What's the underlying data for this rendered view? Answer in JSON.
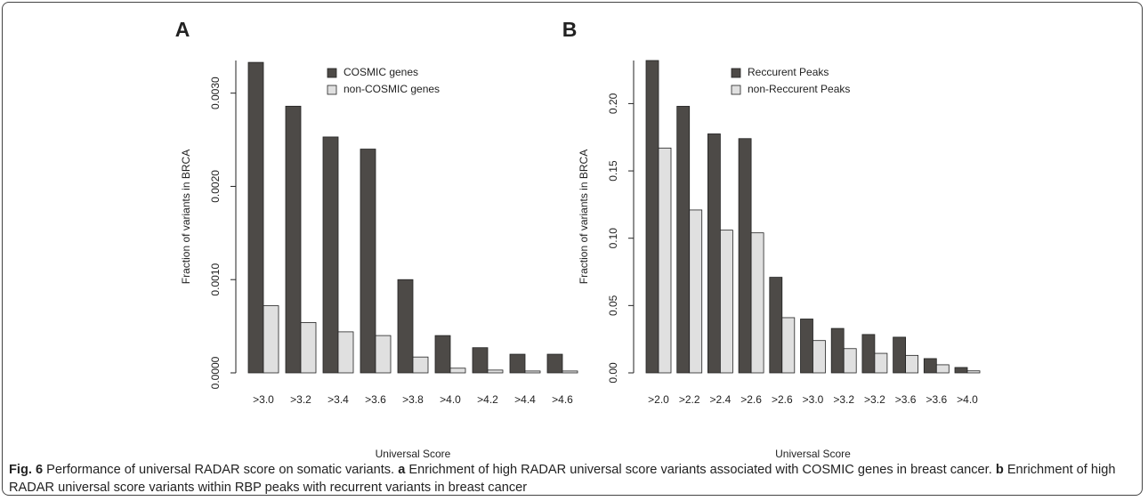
{
  "chart_data": [
    {
      "type": "bar",
      "panel": "A",
      "x_label": "Universal Score",
      "y_label": "Fraction of variants in BRCA",
      "categories": [
        ">3.0",
        ">3.2",
        ">3.4",
        ">3.6",
        ">3.8",
        ">4.0",
        ">4.2",
        ">4.4",
        ">4.6"
      ],
      "series": [
        {
          "name": "COSMIC genes",
          "color": "#4d4a47",
          "values": [
            0.00333,
            0.00286,
            0.00253,
            0.0024,
            0.001,
            0.0004,
            0.00027,
            0.0002,
            0.0002
          ]
        },
        {
          "name": "non-COSMIC genes",
          "color": "#e0e0e0",
          "values": [
            0.00072,
            0.00054,
            0.00044,
            0.0004,
            0.00017,
            5e-05,
            3e-05,
            2e-05,
            2e-05
          ]
        }
      ],
      "ylim": [
        0,
        0.00335
      ],
      "yticks": [
        {
          "value": 0,
          "label": "0.0000"
        },
        {
          "value": 0.001,
          "label": "0.0010"
        },
        {
          "value": 0.002,
          "label": "0.0020"
        },
        {
          "value": 0.003,
          "label": "0.0030"
        }
      ],
      "grid": false
    },
    {
      "type": "bar",
      "panel": "B",
      "x_label": "Universal Score",
      "y_label": "Fraction of variants in BRCA",
      "categories": [
        ">2.0",
        ">2.2",
        ">2.4",
        ">2.6",
        ">2.6",
        ">3.0",
        ">3.2",
        ">3.2",
        ">3.6",
        ">3.6",
        ">4.0"
      ],
      "series": [
        {
          "name": "Reccurent Peaks",
          "color": "#4d4a47",
          "values": [
            0.232,
            0.198,
            0.1775,
            0.174,
            0.071,
            0.04,
            0.033,
            0.0285,
            0.0265,
            0.0106,
            0.004
          ]
        },
        {
          "name": "non-Reccurent Peaks",
          "color": "#e0e0e0",
          "values": [
            0.167,
            0.121,
            0.106,
            0.104,
            0.041,
            0.024,
            0.018,
            0.0145,
            0.013,
            0.006,
            0.0015
          ]
        }
      ],
      "ylim": [
        0,
        0.232
      ],
      "yticks": [
        {
          "value": 0,
          "label": "0.00"
        },
        {
          "value": 0.05,
          "label": "0.05"
        },
        {
          "value": 0.1,
          "label": "0.10"
        },
        {
          "value": 0.15,
          "label": "0.15"
        },
        {
          "value": 0.2,
          "label": "0.20"
        }
      ],
      "grid": false
    }
  ],
  "caption": {
    "label": "Fig. 6",
    "title": "Performance of universal RADAR score on somatic variants.",
    "parts": [
      {
        "label": "a",
        "text": "Enrichment of high RADAR universal score variants associated with COSMIC genes in breast cancer."
      },
      {
        "label": "b",
        "text": "Enrichment of high RADAR universal score variants within RBP peaks with recurrent variants in breast cancer"
      }
    ]
  }
}
